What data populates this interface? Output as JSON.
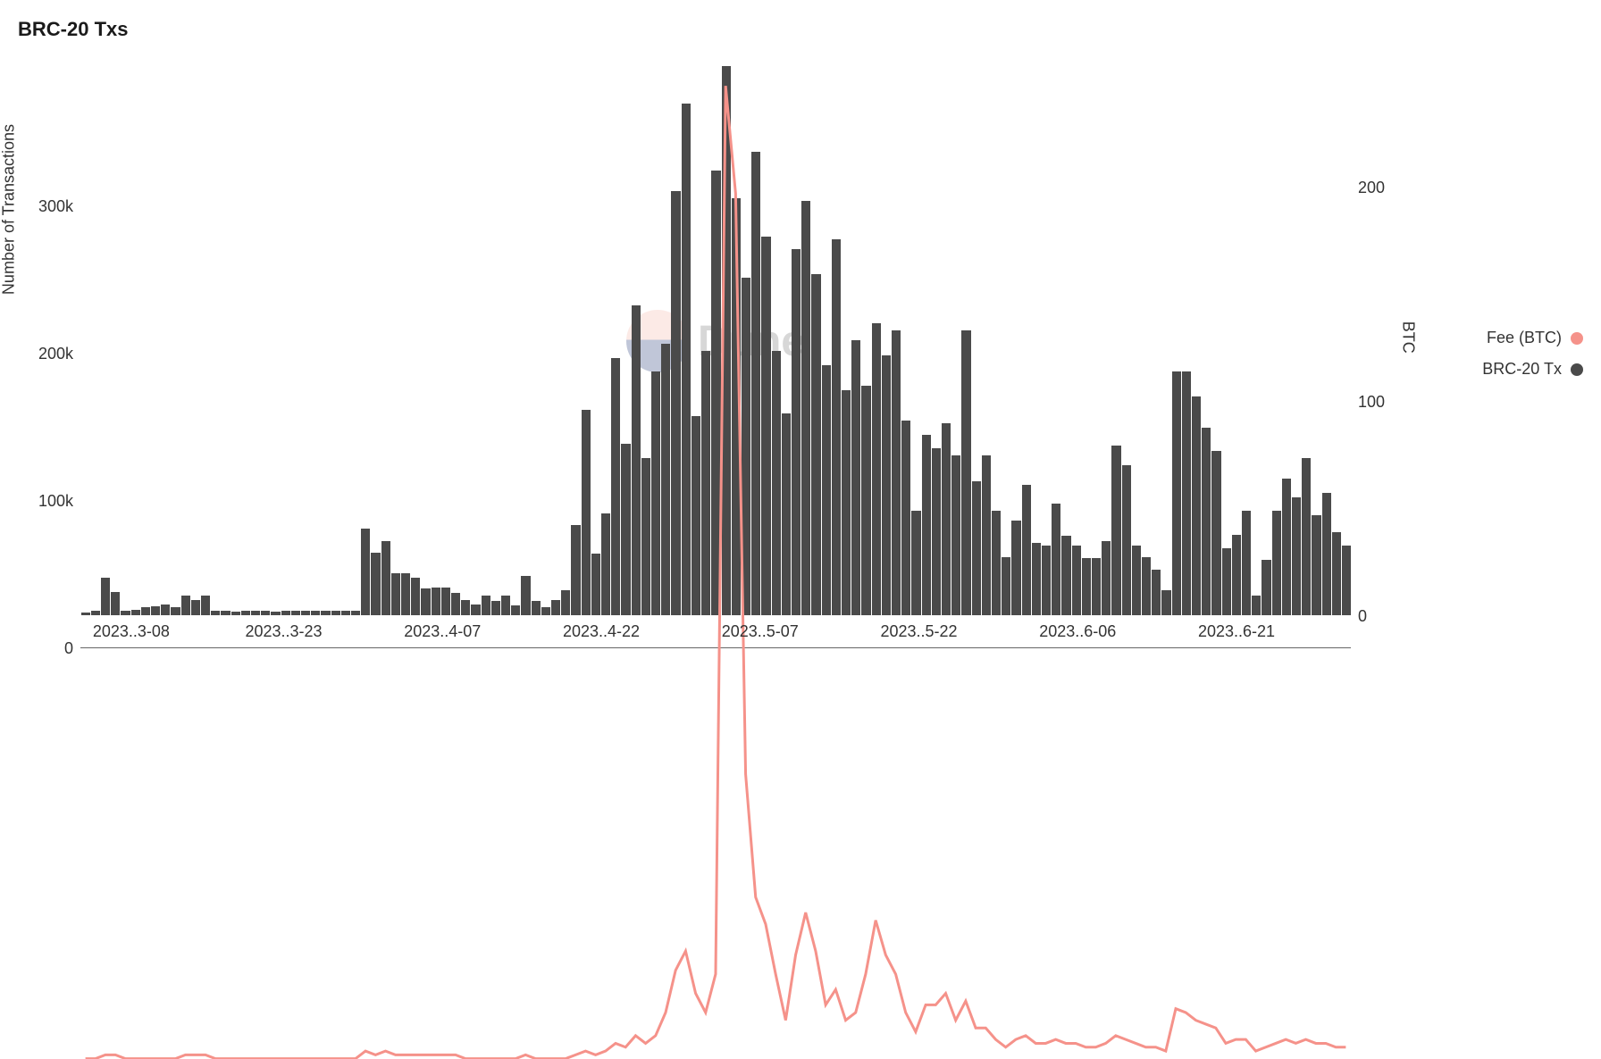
{
  "chart": {
    "type": "bar+line",
    "title": "BRC-20 Txs",
    "title_fontsize": 22,
    "title_fontweight": 700,
    "background_color": "#ffffff",
    "tick_fontsize": 18,
    "tick_color": "#333333",
    "y_left": {
      "label": "Number of Transactions",
      "ticks": [
        "300k",
        "200k",
        "100k",
        "0"
      ],
      "min": 0,
      "max": 400000,
      "tick_values": [
        300000,
        200000,
        100000,
        0
      ]
    },
    "y_right": {
      "label": "BTC",
      "ticks": [
        "200",
        "100",
        "0"
      ],
      "min": 0,
      "max": 260,
      "tick_values": [
        200,
        100,
        0
      ]
    },
    "x_axis": {
      "tick_labels": [
        "2023..3-08",
        "2023..3-23",
        "2023..4-07",
        "2023..4-22",
        "2023..5-07",
        "2023..5-22",
        "2023..6-06",
        "2023..6-21"
      ],
      "tick_positions_pct": [
        4,
        16,
        28.5,
        41,
        53.5,
        66,
        78.5,
        91
      ]
    },
    "bars": {
      "color": "#4a4a4a",
      "values": [
        2000,
        3500,
        27000,
        17000,
        3500,
        4000,
        5500,
        6500,
        8000,
        6000,
        14000,
        11000,
        14000,
        3500,
        3500,
        2500,
        3000,
        3000,
        3000,
        2500,
        3500,
        3500,
        3000,
        3000,
        3000,
        3000,
        3000,
        3000,
        62000,
        45000,
        53000,
        30000,
        30000,
        27000,
        19000,
        20000,
        20000,
        16000,
        11000,
        8000,
        14000,
        10000,
        14000,
        7000,
        28000,
        10000,
        6000,
        11000,
        18000,
        65000,
        148000,
        44000,
        73000,
        185000,
        123000,
        223000,
        113000,
        175000,
        195000,
        305000,
        368000,
        143000,
        190000,
        320000,
        395000,
        300000,
        243000,
        333000,
        272000,
        190000,
        145000,
        263000,
        298000,
        245000,
        180000,
        270000,
        162000,
        198000,
        165000,
        210000,
        187000,
        205000,
        140000,
        75000,
        130000,
        120000,
        138000,
        115000,
        205000,
        96000,
        115000,
        75000,
        42000,
        68000,
        94000,
        52000,
        50000,
        80000,
        57000,
        50000,
        41000,
        41000,
        53000,
        122000,
        108000,
        50000,
        42000,
        33000,
        18000,
        175000,
        175000,
        157000,
        135000,
        118000,
        48000,
        58000,
        75000,
        14000,
        40000,
        75000,
        98000,
        85000,
        113000,
        72000,
        88000,
        60000,
        50000
      ]
    },
    "line": {
      "color": "#f5928a",
      "stroke_width": 3,
      "values": [
        0,
        0,
        1,
        1,
        0,
        0,
        0,
        0,
        0,
        0,
        1,
        1,
        1,
        0,
        0,
        0,
        0,
        0,
        0,
        0,
        0,
        0,
        0,
        0,
        0,
        0,
        0,
        0,
        2,
        1,
        2,
        1,
        1,
        1,
        1,
        1,
        1,
        1,
        0,
        0,
        0,
        0,
        0,
        0,
        1,
        0,
        0,
        0,
        0,
        1,
        2,
        1,
        2,
        4,
        3,
        6,
        4,
        6,
        12,
        23,
        28,
        17,
        12,
        22,
        253,
        225,
        74,
        42,
        35,
        22,
        10,
        27,
        38,
        28,
        14,
        18,
        10,
        12,
        22,
        36,
        27,
        22,
        12,
        7,
        14,
        14,
        17,
        10,
        15,
        8,
        8,
        5,
        3,
        5,
        6,
        4,
        4,
        5,
        4,
        4,
        3,
        3,
        4,
        6,
        5,
        4,
        3,
        3,
        2,
        13,
        12,
        10,
        9,
        8,
        4,
        5,
        5,
        2,
        3,
        4,
        5,
        4,
        5,
        4,
        4,
        3,
        3
      ]
    },
    "legend": {
      "items": [
        {
          "label": "Fee (BTC)",
          "color": "#f5928a"
        },
        {
          "label": "BRC-20 Tx",
          "color": "#4a4a4a"
        }
      ]
    },
    "watermark": {
      "text": "Dune"
    }
  }
}
